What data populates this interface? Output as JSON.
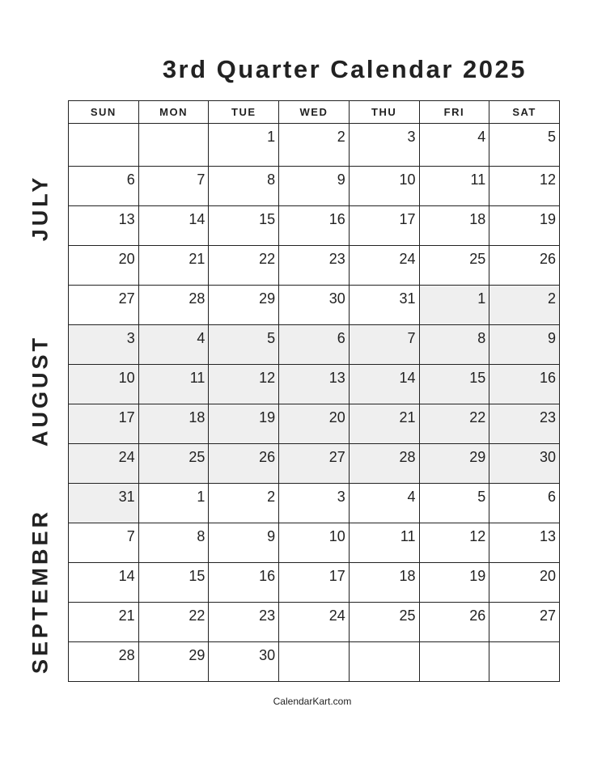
{
  "title": "3rd Quarter Calendar 2025",
  "weekdays": [
    "SUN",
    "MON",
    "TUE",
    "WED",
    "THU",
    "FRI",
    "SAT"
  ],
  "months": [
    "JULY",
    "AUGUST",
    "SEPTEMBER"
  ],
  "shade_color": "#efefef",
  "weeks": [
    {
      "days": [
        "",
        "",
        "1",
        "2",
        "3",
        "4",
        "5"
      ],
      "shaded": []
    },
    {
      "days": [
        "6",
        "7",
        "8",
        "9",
        "10",
        "11",
        "12"
      ],
      "shaded": []
    },
    {
      "days": [
        "13",
        "14",
        "15",
        "16",
        "17",
        "18",
        "19"
      ],
      "shaded": []
    },
    {
      "days": [
        "20",
        "21",
        "22",
        "23",
        "24",
        "25",
        "26"
      ],
      "shaded": []
    },
    {
      "days": [
        "27",
        "28",
        "29",
        "30",
        "31",
        "1",
        "2"
      ],
      "shaded": [
        5,
        6
      ]
    },
    {
      "days": [
        "3",
        "4",
        "5",
        "6",
        "7",
        "8",
        "9"
      ],
      "shaded": [
        0,
        1,
        2,
        3,
        4,
        5,
        6
      ]
    },
    {
      "days": [
        "10",
        "11",
        "12",
        "13",
        "14",
        "15",
        "16"
      ],
      "shaded": [
        0,
        1,
        2,
        3,
        4,
        5,
        6
      ]
    },
    {
      "days": [
        "17",
        "18",
        "19",
        "20",
        "21",
        "22",
        "23"
      ],
      "shaded": [
        0,
        1,
        2,
        3,
        4,
        5,
        6
      ]
    },
    {
      "days": [
        "24",
        "25",
        "26",
        "27",
        "28",
        "29",
        "30"
      ],
      "shaded": [
        0,
        1,
        2,
        3,
        4,
        5,
        6
      ]
    },
    {
      "days": [
        "31",
        "1",
        "2",
        "3",
        "4",
        "5",
        "6"
      ],
      "shaded": [
        0
      ]
    },
    {
      "days": [
        "7",
        "8",
        "9",
        "10",
        "11",
        "12",
        "13"
      ],
      "shaded": []
    },
    {
      "days": [
        "14",
        "15",
        "16",
        "17",
        "18",
        "19",
        "20"
      ],
      "shaded": []
    },
    {
      "days": [
        "21",
        "22",
        "23",
        "24",
        "25",
        "26",
        "27"
      ],
      "shaded": []
    },
    {
      "days": [
        "28",
        "29",
        "30",
        "",
        "",
        "",
        ""
      ],
      "shaded": []
    }
  ],
  "footer": "CalendarKart.com"
}
